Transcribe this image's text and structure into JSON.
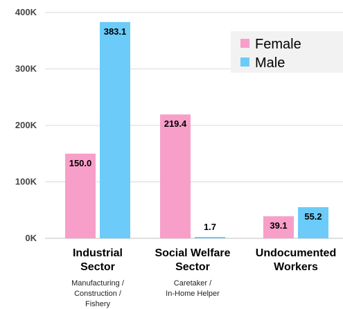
{
  "chart_data": {
    "type": "bar",
    "categories": [
      "Industrial Sector",
      "Social Welfare Sector",
      "Undocumented Workers"
    ],
    "category_titles": [
      [
        "Industrial",
        "Sector"
      ],
      [
        "Social Welfare",
        "Sector"
      ],
      [
        "Undocumented",
        "Workers"
      ]
    ],
    "category_subtitles": [
      [
        "Manufacturing /",
        "Construction /",
        "Fishery"
      ],
      [
        "Caretaker /",
        "In-Home Helper"
      ],
      []
    ],
    "series": [
      {
        "name": "Female",
        "color": "#f79fc8",
        "values": [
          150.0,
          219.4,
          39.1
        ],
        "labels": [
          "150.0",
          "219.4",
          "39.1"
        ]
      },
      {
        "name": "Male",
        "color": "#6ccbf8",
        "values": [
          383.1,
          1.7,
          55.2
        ],
        "labels": [
          "383.1",
          "1.7",
          "55.2"
        ]
      }
    ],
    "y_ticks": [
      0,
      100,
      200,
      300,
      400
    ],
    "y_tick_labels": [
      "0K",
      "100K",
      "200K",
      "300K",
      "400K"
    ],
    "ylim": [
      0,
      400
    ],
    "grid": true,
    "legend_position": "top-right"
  }
}
